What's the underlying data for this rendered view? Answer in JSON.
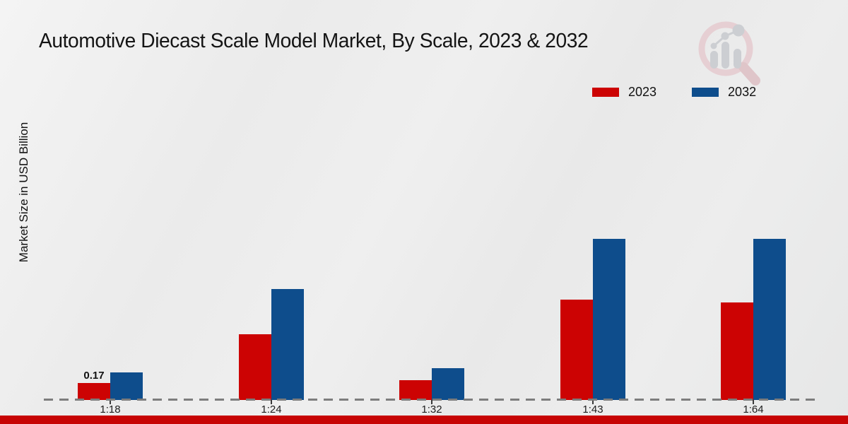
{
  "header": {
    "title": "Automotive Diecast Scale Model Market, By Scale, 2023 & 2032"
  },
  "watermark": {
    "name": "market-research-magnifier-logo",
    "ring_color": "#e6cbcf",
    "handle_color": "#ddbfc3",
    "bars_color": "#c7c9ce"
  },
  "chart_data": {
    "type": "bar",
    "title": "Automotive Diecast Scale Model Market, By Scale, 2023 & 2032",
    "xlabel": "",
    "ylabel": "Market Size in USD Billion",
    "categories": [
      "1:18",
      "1:24",
      "1:32",
      "1:43",
      "1:64"
    ],
    "series": [
      {
        "name": "2023",
        "color": "#cc0303",
        "values": [
          0.17,
          0.66,
          0.2,
          1.01,
          0.98
        ]
      },
      {
        "name": "2032",
        "color": "#0e4d8c",
        "values": [
          0.28,
          1.11,
          0.32,
          1.62,
          1.62
        ]
      }
    ],
    "annotations": [
      {
        "series_index": 0,
        "category_index": 0,
        "text": "0.17"
      }
    ],
    "axis": {
      "y_ticks_visible": false,
      "gridlines": false,
      "baseline_style": "dashed",
      "ylim": [
        0,
        2.0
      ]
    },
    "legend_position": "top-right"
  },
  "legend": {
    "items": [
      {
        "label": "2023",
        "color": "#cc0303"
      },
      {
        "label": "2032",
        "color": "#0e4d8c"
      }
    ]
  },
  "footer": {
    "accent_color": "#c70404"
  }
}
